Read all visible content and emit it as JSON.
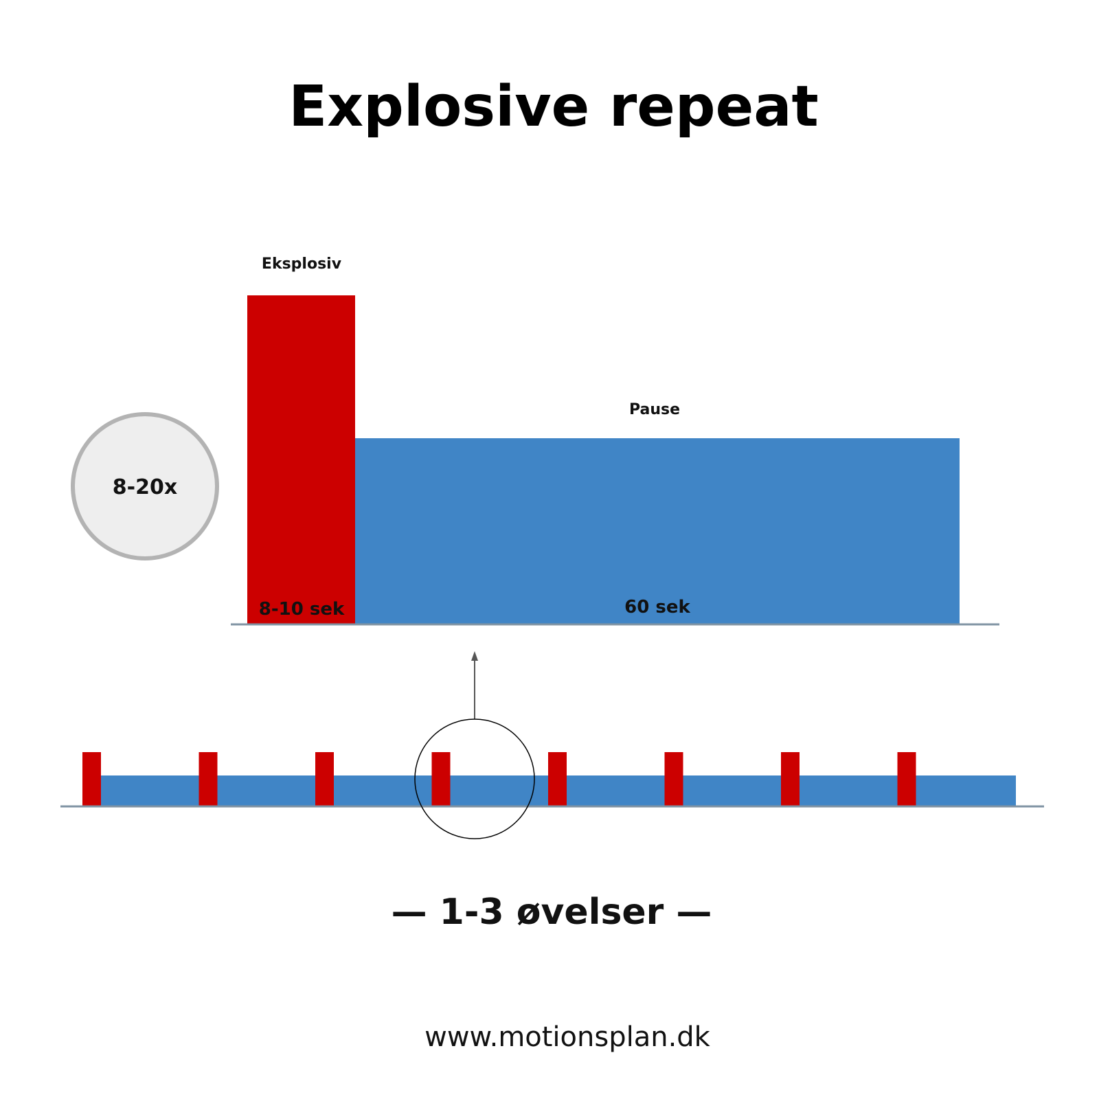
{
  "title": "Explosive repeat",
  "detail": {
    "work_label": "Eksplosiv",
    "work_duration": "8-10 sek",
    "rest_label": "Pause",
    "rest_duration": "60 sek",
    "repeat_count": "8-20x"
  },
  "overview": {
    "interval_count": 8,
    "highlighted_interval": 4
  },
  "footer_label": "— 1-3 øvelser —",
  "website": "www.motionsplan.dk",
  "colors": {
    "work": "#cc0000",
    "rest": "#4085c6",
    "baseline": "#7f93a3",
    "badge_fill": "#eeeeee",
    "badge_stroke": "#b3b3b3",
    "arrow": "#555555"
  }
}
